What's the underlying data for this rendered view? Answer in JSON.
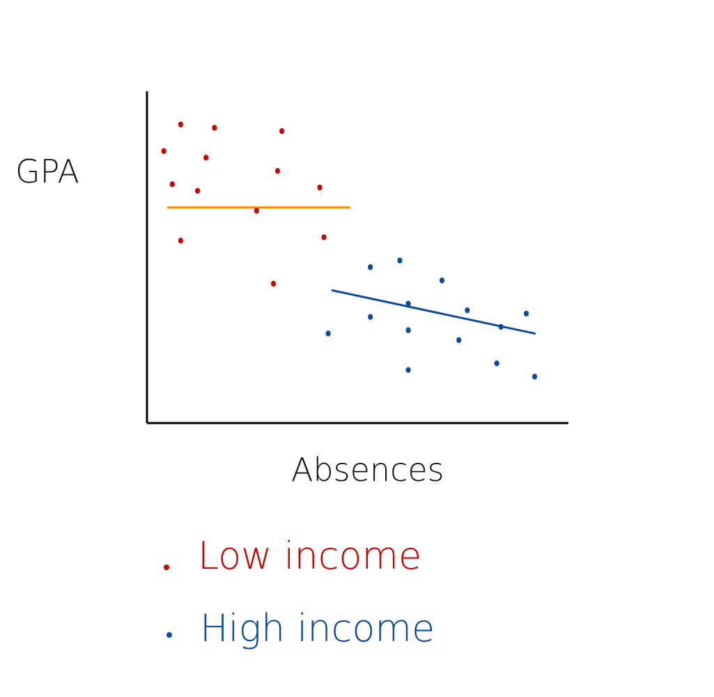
{
  "chart_data": {
    "type": "scatter",
    "title": "",
    "xlabel": "Absences",
    "ylabel": "GPA",
    "xlim": [
      0,
      100
    ],
    "ylim": [
      0,
      100
    ],
    "grid": false,
    "legend_position": "bottom-left",
    "series": [
      {
        "name": "Low income",
        "color": "#cc0000",
        "points": [
          {
            "x": 4,
            "y": 82
          },
          {
            "x": 8,
            "y": 90
          },
          {
            "x": 6,
            "y": 72
          },
          {
            "x": 8,
            "y": 55
          },
          {
            "x": 12,
            "y": 70
          },
          {
            "x": 14,
            "y": 80
          },
          {
            "x": 16,
            "y": 89
          },
          {
            "x": 26,
            "y": 64
          },
          {
            "x": 30,
            "y": 42
          },
          {
            "x": 31,
            "y": 76
          },
          {
            "x": 32,
            "y": 88
          },
          {
            "x": 41,
            "y": 71
          },
          {
            "x": 42,
            "y": 56
          }
        ],
        "trend": {
          "color": "#ff8c00",
          "start": {
            "x": 5,
            "y": 65
          },
          "end": {
            "x": 48,
            "y": 65
          }
        }
      },
      {
        "name": "High income",
        "color": "#0b4a9c",
        "points": [
          {
            "x": 43,
            "y": 27
          },
          {
            "x": 53,
            "y": 47
          },
          {
            "x": 53,
            "y": 32
          },
          {
            "x": 60,
            "y": 49
          },
          {
            "x": 62,
            "y": 36
          },
          {
            "x": 62,
            "y": 28
          },
          {
            "x": 62,
            "y": 16
          },
          {
            "x": 70,
            "y": 43
          },
          {
            "x": 74,
            "y": 25
          },
          {
            "x": 76,
            "y": 34
          },
          {
            "x": 83,
            "y": 18
          },
          {
            "x": 84,
            "y": 29
          },
          {
            "x": 90,
            "y": 33
          },
          {
            "x": 92,
            "y": 14
          }
        ],
        "trend": {
          "color": "#0b4a9c",
          "start": {
            "x": 44,
            "y": 40
          },
          "end": {
            "x": 92,
            "y": 27
          }
        }
      }
    ]
  }
}
